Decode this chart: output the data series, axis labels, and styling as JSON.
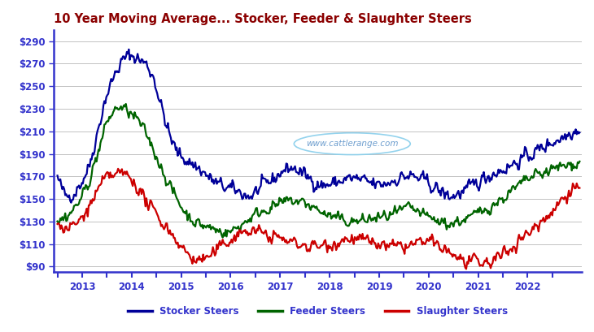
{
  "title": "10 Year Moving Average... Stocker, Feeder & Slaughter Steers",
  "title_color": "#8B0000",
  "watermark": "www.cattlerange.com",
  "ylabel_color": "#3333cc",
  "yticks": [
    90,
    110,
    130,
    150,
    170,
    190,
    210,
    230,
    250,
    270,
    290
  ],
  "ylim": [
    85,
    300
  ],
  "xlim_start": 2012.42,
  "xlim_end": 2023.1,
  "year_ticks": [
    2013,
    2014,
    2015,
    2016,
    2017,
    2018,
    2019,
    2020,
    2021,
    2022
  ],
  "stocker_color": "#000099",
  "feeder_color": "#006400",
  "slaughter_color": "#cc0000",
  "background_color": "#ffffff",
  "legend_labels": [
    "Stocker Steers",
    "Feeder Steers",
    "Slaughter Steers"
  ],
  "figsize": [
    7.3,
    4.09
  ],
  "dpi": 100
}
